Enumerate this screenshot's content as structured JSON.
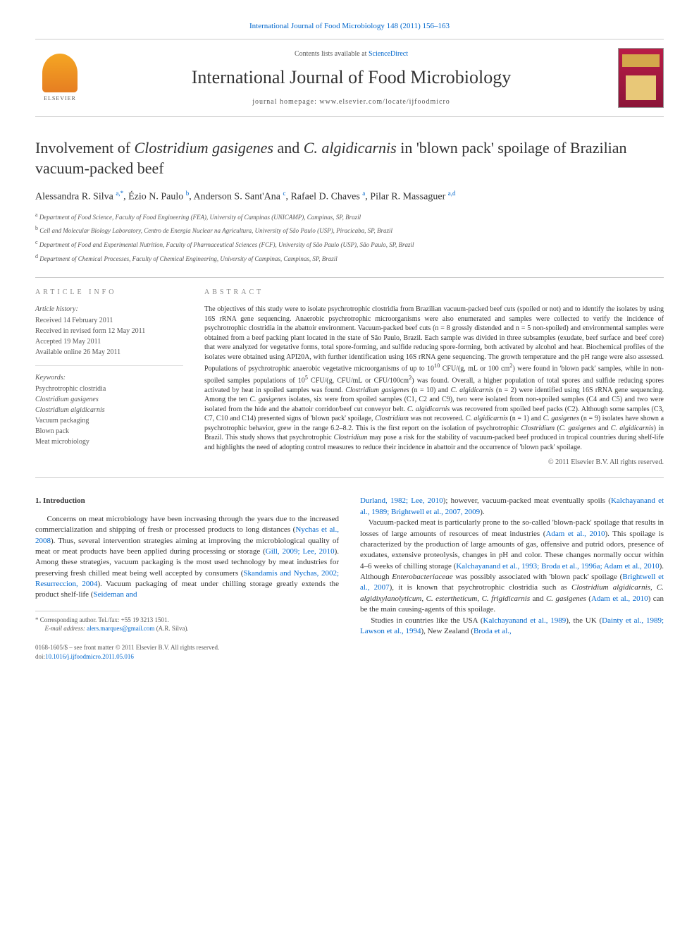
{
  "top_citation": "International Journal of Food Microbiology 148 (2011) 156–163",
  "masthead": {
    "contents_prefix": "Contents lists available at ",
    "contents_link": "ScienceDirect",
    "journal_title": "International Journal of Food Microbiology",
    "homepage_prefix": "journal homepage: ",
    "homepage": "www.elsevier.com/locate/ijfoodmicro",
    "elsevier_label": "ELSEVIER"
  },
  "title_parts": {
    "p1": "Involvement of ",
    "p2": "Clostridium gasigenes",
    "p3": " and ",
    "p4": "C. algidicarnis",
    "p5": " in 'blown pack' spoilage of Brazilian vacuum-packed beef"
  },
  "authors": {
    "a1_name": "Alessandra R. Silva",
    "a1_aff": "a,",
    "a1_star": "*",
    "a2_name": "Ézio N. Paulo",
    "a2_aff": "b",
    "a3_name": "Anderson S. Sant'Ana",
    "a3_aff": "c",
    "a4_name": "Rafael D. Chaves",
    "a4_aff": "a",
    "a5_name": "Pilar R. Massaguer",
    "a5_aff": "a,d"
  },
  "affiliations": {
    "a": "Department of Food Science, Faculty of Food Engineering (FEA), University of Campinas (UNICAMP), Campinas, SP, Brazil",
    "b": "Cell and Molecular Biology Laboratory, Centro de Energia Nuclear na Agricultura, University of São Paulo (USP), Piracicaba, SP, Brazil",
    "c": "Department of Food and Experimental Nutrition, Faculty of Pharmaceutical Sciences (FCF), University of São Paulo (USP), São Paulo, SP, Brazil",
    "d": "Department of Chemical Processes, Faculty of Chemical Engineering, University of Campinas, Campinas, SP, Brazil"
  },
  "info": {
    "heading": "article info",
    "history_label": "Article history:",
    "received": "Received 14 February 2011",
    "revised": "Received in revised form 12 May 2011",
    "accepted": "Accepted 19 May 2011",
    "online": "Available online 26 May 2011",
    "keywords_label": "Keywords:",
    "kw1": "Psychrotrophic clostridia",
    "kw2": "Clostridium gasigenes",
    "kw3": "Clostridium algidicarnis",
    "kw4": "Vacuum packaging",
    "kw5": "Blown pack",
    "kw6": "Meat microbiology"
  },
  "abstract": {
    "heading": "abstract",
    "text_html": "The objectives of this study were to isolate psychrotrophic clostridia from Brazilian vacuum-packed beef cuts (spoiled or not) and to identify the isolates by using 16S rRNA gene sequencing. Anaerobic psychrotrophic microorganisms were also enumerated and samples were collected to verify the incidence of psychrotrophic clostridia in the abattoir environment. Vacuum-packed beef cuts (n = 8 grossly distended and n = 5 non-spoiled) and environmental samples were obtained from a beef packing plant located in the state of São Paulo, Brazil. Each sample was divided in three subsamples (exudate, beef surface and beef core) that were analyzed for vegetative forms, total spore-forming, and sulfide reducing spore-forming, both activated by alcohol and heat. Biochemical profiles of the isolates were obtained using API20A, with further identification using 16S rRNA gene sequencing. The growth temperature and the pH range were also assessed. Populations of psychrotrophic anaerobic vegetative microorganisms of up to 10<sup>10</sup> CFU/(g, mL or 100 cm<sup>2</sup>) were found in 'blown pack' samples, while in non-spoiled samples populations of 10<sup>5</sup> CFU/(g, CFU/mL or CFU/100cm<sup>2</sup>) was found. Overall, a higher population of total spores and sulfide reducing spores activated by heat in spoiled samples was found. <em>Clostridium gasigenes</em> (n = 10) and <em>C. algidicarnis</em> (n = 2) were identified using 16S rRNA gene sequencing. Among the ten <em>C. gasigenes</em> isolates, six were from spoiled samples (C1, C2 and C9), two were isolated from non-spoiled samples (C4 and C5) and two were isolated from the hide and the abattoir corridor/beef cut conveyor belt. <em>C. algidicarnis</em> was recovered from spoiled beef packs (C2). Although some samples (C3, C7, C10 and C14) presented signs of 'blown pack' spoilage, <em>Clostridium</em> was not recovered. <em>C. algidicarnis</em> (n = 1) and <em>C. gasigenes</em> (n = 9) isolates have shown a psychrotrophic behavior, grew in the range 6.2–8.2. This is the first report on the isolation of psychrotrophic <em>Clostridium</em> (<em>C. gasigenes</em> and <em>C. algidicarnis</em>) in Brazil. This study shows that psychrotrophic <em>Clostridium</em> may pose a risk for the stability of vacuum-packed beef produced in tropical countries during shelf-life and highlights the need of adopting control measures to reduce their incidence in abattoir and the occurrence of 'blown pack' spoilage.",
    "copyright": "© 2011 Elsevier B.V. All rights reserved."
  },
  "intro": {
    "heading": "1. Introduction",
    "col1_html": "Concerns on meat microbiology have been increasing through the years due to the increased commercialization and shipping of fresh or processed products to long distances (<span class='ref'>Nychas et al., 2008</span>). Thus, several intervention strategies aiming at improving the microbiological quality of meat or meat products have been applied during processing or storage (<span class='ref'>Gill, 2009; Lee, 2010</span>). Among these strategies, vacuum packaging is the most used technology by meat industries for preserving fresh chilled meat being well accepted by consumers (<span class='ref'>Skandamis and Nychas, 2002; Resurreccion, 2004</span>). Vacuum packaging of meat under chilling storage greatly extends the product shelf-life (<span class='ref'>Seideman and</span>",
    "col2_html": "<span class='ref'>Durland, 1982; Lee, 2010</span>); however, vacuum-packed meat eventually spoils (<span class='ref'>Kalchayanand et al., 1989; Brightwell et al., 2007, 2009</span>).<br>&nbsp;&nbsp;&nbsp;&nbsp;Vacuum-packed meat is particularly prone to the so-called 'blown-pack' spoilage that results in losses of large amounts of resources of meat industries (<span class='ref'>Adam et al., 2010</span>). This spoilage is characterized by the production of large amounts of gas, offensive and putrid odors, presence of exudates, extensive proteolysis, changes in pH and color. These changes normally occur within 4–6 weeks of chilling storage (<span class='ref'>Kalchayanand et al., 1993; Broda et al., 1996a; Adam et al., 2010</span>). Although <em>Enterobacteriaceae</em> was possibly associated with 'blown pack' spoilage (<span class='ref'>Brightwell et al., 2007</span>), it is known that psychrotrophic clostridia such as <em>Clostridium algidicarnis</em>, <em>C. algidixylanolyticum</em>, <em>C. estertheticum</em>, <em>C. frigidicarnis</em> and <em>C. gasigenes</em> (<span class='ref'>Adam et al., 2010</span>) can be the main causing-agents of this spoilage.<br>&nbsp;&nbsp;&nbsp;&nbsp;Studies in countries like the USA (<span class='ref'>Kalchayanand et al., 1989</span>), the UK (<span class='ref'>Dainty et al., 1989; Lawson et al., 1994</span>), New Zealand (<span class='ref'>Broda et al.,</span>"
  },
  "footnote": {
    "corr": "Corresponding author. Tel./fax: +55 19 3213 1501.",
    "email_label": "E-mail address:",
    "email": "alers.marques@gmail.com",
    "email_who": "(A.R. Silva)."
  },
  "bottom": {
    "issn": "0168-1605/$ – see front matter © 2011 Elsevier B.V. All rights reserved.",
    "doi_label": "doi:",
    "doi": "10.1016/j.ijfoodmicro.2011.05.016"
  },
  "colors": {
    "link": "#0066cc",
    "text": "#333333",
    "muted": "#555555",
    "rule": "#cccccc"
  }
}
